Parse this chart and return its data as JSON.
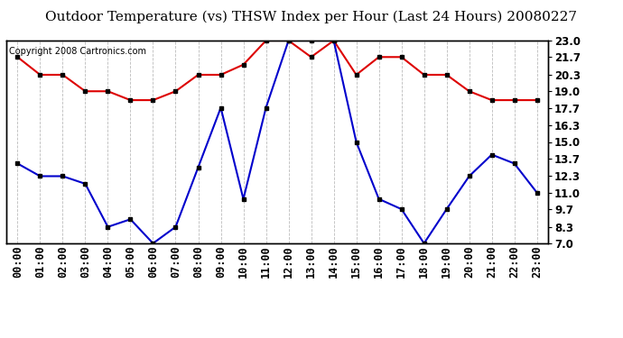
{
  "title": "Outdoor Temperature (vs) THSW Index per Hour (Last 24 Hours) 20080227",
  "copyright": "Copyright 2008 Cartronics.com",
  "hours": [
    "00:00",
    "01:00",
    "02:00",
    "03:00",
    "04:00",
    "05:00",
    "06:00",
    "07:00",
    "08:00",
    "09:00",
    "10:00",
    "11:00",
    "12:00",
    "13:00",
    "14:00",
    "15:00",
    "16:00",
    "17:00",
    "18:00",
    "19:00",
    "20:00",
    "21:00",
    "22:00",
    "23:00"
  ],
  "temp_red": [
    21.7,
    20.3,
    20.3,
    19.0,
    19.0,
    18.3,
    18.3,
    19.0,
    20.3,
    20.3,
    21.1,
    23.0,
    23.0,
    21.7,
    23.0,
    20.3,
    21.7,
    21.7,
    20.3,
    20.3,
    19.0,
    18.3,
    18.3,
    18.3
  ],
  "thsw_blue": [
    13.3,
    12.3,
    12.3,
    11.7,
    8.3,
    8.9,
    7.0,
    8.3,
    13.0,
    17.7,
    10.5,
    17.7,
    23.0,
    23.0,
    23.0,
    15.0,
    10.5,
    9.7,
    7.0,
    9.7,
    12.3,
    14.0,
    13.3,
    11.0
  ],
  "ylim": [
    7.0,
    23.0
  ],
  "yticks": [
    7.0,
    8.3,
    9.7,
    11.0,
    12.3,
    13.7,
    15.0,
    16.3,
    17.7,
    19.0,
    20.3,
    21.7,
    23.0
  ],
  "red_color": "#dd0000",
  "blue_color": "#0000cc",
  "marker_color": "#000000",
  "bg_color": "#ffffff",
  "grid_color": "#bbbbbb",
  "title_fontsize": 11,
  "copyright_fontsize": 7,
  "tick_fontsize": 8.5
}
